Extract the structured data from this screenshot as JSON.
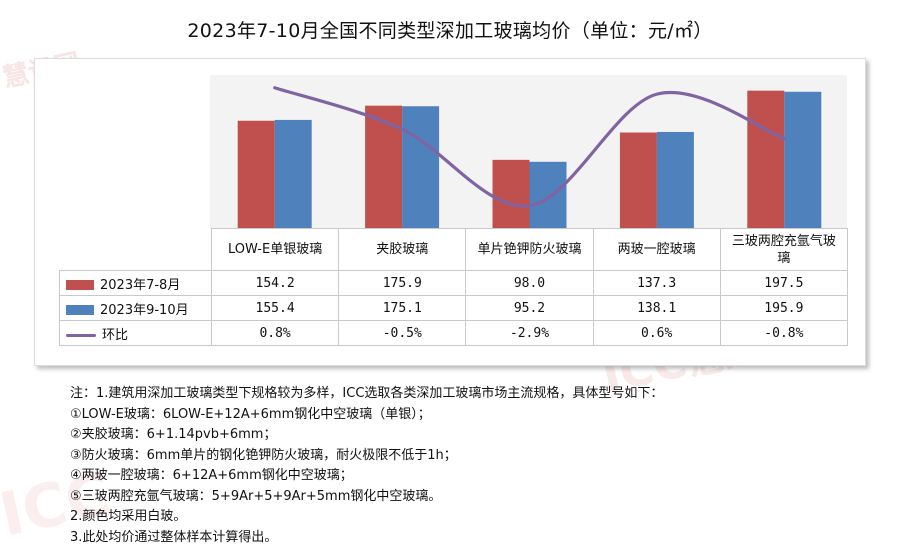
{
  "title": "2023年7-10月全国不同类型深加工玻璃均价（单位：元/㎡）",
  "watermarks": [
    "慧讯网",
    "ICC慧讯网",
    "ICC"
  ],
  "colors": {
    "series1": "#c0504d",
    "series2": "#4f81bd",
    "ring_ratio": "#8064a2"
  },
  "chart_data": {
    "type": "bar",
    "title": "2023年7-10月全国不同类型深加工玻璃均价（单位：元/㎡）",
    "categories": [
      "LOW-E单银玻璃",
      "夹胶玻璃",
      "单片铯钾防火玻璃",
      "两玻一腔玻璃",
      "三玻两腔充氩气玻璃"
    ],
    "series": [
      {
        "name": "2023年7-8月",
        "type": "bar",
        "values": [
          154.2,
          175.9,
          98.0,
          137.3,
          197.5
        ],
        "labels": [
          "154.2",
          "175.9",
          "98.0",
          "137.3",
          "197.5"
        ]
      },
      {
        "name": "2023年9-10月",
        "type": "bar",
        "values": [
          155.4,
          175.1,
          95.2,
          138.1,
          195.9
        ],
        "labels": [
          "155.4",
          "175.1",
          "95.2",
          "138.1",
          "195.9"
        ]
      },
      {
        "name": "环比",
        "type": "line",
        "smooth": true,
        "values": [
          0.8,
          -0.5,
          -2.9,
          0.6,
          -0.8
        ],
        "labels": [
          "0.8%",
          "-0.5%",
          "-2.9%",
          "0.6%",
          "-0.8%"
        ]
      }
    ],
    "ylim": [
      0,
      220
    ],
    "y2lim": [
      -3.6,
      1.2
    ],
    "legend": "data-table",
    "grid": false
  },
  "notes": [
    "注：1.建筑用深加工玻璃类型下规格较为多样，ICC选取各类深加工玻璃市场主流规格，具体型号如下：",
    "①LOW-E玻璃：6LOW-E+12A+6mm钢化中空玻璃（单银）；",
    "②夹胶玻璃：6+1.14pvb+6mm；",
    "③防火玻璃：6mm单片的钢化铯钾防火玻璃，耐火极限不低于1h；",
    "④两玻一腔玻璃：6+12A+6mm钢化中空玻璃；",
    "⑤三玻两腔充氩气玻璃：5+9Ar+5+9Ar+5mm钢化中空玻璃。",
    "2.颜色均采用白玻。",
    "3.此处均价通过整体样本计算得出。"
  ]
}
